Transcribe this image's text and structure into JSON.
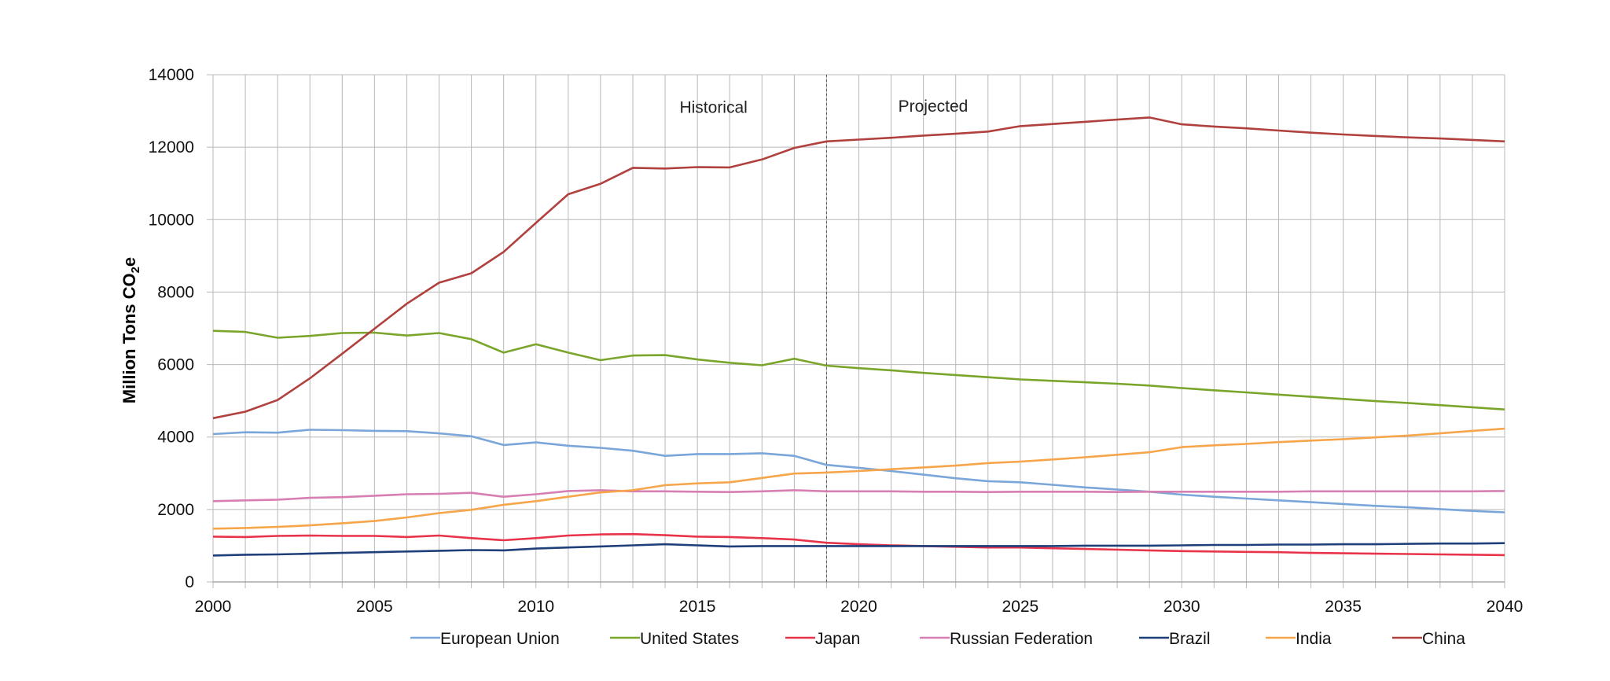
{
  "chart_data": {
    "type": "line",
    "ylabel": "Million Tons CO2e",
    "ylabel_main": "Million Tons CO",
    "ylabel_sub": "2",
    "ylabel_tail": "e",
    "xlim": [
      2000,
      2040
    ],
    "ylim": [
      0,
      14000
    ],
    "xticks": [
      2000,
      2005,
      2010,
      2015,
      2020,
      2025,
      2030,
      2035,
      2040
    ],
    "yticks": [
      0,
      2000,
      4000,
      6000,
      8000,
      10000,
      12000,
      14000
    ],
    "grid": true,
    "legend_position": "bottom",
    "divider_x": 2019,
    "annotations": [
      {
        "text": "Historical",
        "x": 2015.5,
        "y": 13100
      },
      {
        "text": "Projected",
        "x": 2022.3,
        "y": 13130
      }
    ],
    "x": [
      2000,
      2001,
      2002,
      2003,
      2004,
      2005,
      2006,
      2007,
      2008,
      2009,
      2010,
      2011,
      2012,
      2013,
      2014,
      2015,
      2016,
      2017,
      2018,
      2019,
      2020,
      2021,
      2022,
      2023,
      2024,
      2025,
      2026,
      2027,
      2028,
      2029,
      2030,
      2031,
      2032,
      2033,
      2034,
      2035,
      2036,
      2037,
      2038,
      2039,
      2040
    ],
    "series": [
      {
        "name": "European Union",
        "color": "#7ba6d9",
        "values": [
          4080,
          4130,
          4120,
          4200,
          4190,
          4170,
          4160,
          4100,
          4020,
          3780,
          3850,
          3760,
          3700,
          3620,
          3480,
          3530,
          3530,
          3550,
          3480,
          3230,
          3150,
          3060,
          2960,
          2860,
          2780,
          2750,
          2680,
          2610,
          2550,
          2490,
          2410,
          2350,
          2300,
          2250,
          2200,
          2150,
          2100,
          2060,
          2010,
          1960,
          1920
        ]
      },
      {
        "name": "United States",
        "color": "#7aa52b",
        "values": [
          6930,
          6900,
          6740,
          6790,
          6870,
          6880,
          6800,
          6870,
          6700,
          6330,
          6560,
          6330,
          6120,
          6250,
          6260,
          6140,
          6050,
          5980,
          6160,
          5970,
          5900,
          5840,
          5770,
          5710,
          5650,
          5590,
          5550,
          5510,
          5470,
          5420,
          5350,
          5290,
          5230,
          5170,
          5110,
          5050,
          4990,
          4940,
          4880,
          4820,
          4760
        ]
      },
      {
        "name": "Japan",
        "color": "#e8344a",
        "values": [
          1250,
          1240,
          1270,
          1280,
          1270,
          1270,
          1240,
          1280,
          1210,
          1150,
          1210,
          1280,
          1310,
          1320,
          1290,
          1250,
          1240,
          1210,
          1170,
          1080,
          1040,
          1010,
          990,
          970,
          950,
          950,
          930,
          910,
          890,
          870,
          850,
          840,
          830,
          820,
          800,
          790,
          780,
          770,
          760,
          750,
          740
        ]
      },
      {
        "name": "Russian Federation",
        "color": "#d77fb3",
        "values": [
          2230,
          2250,
          2270,
          2320,
          2340,
          2380,
          2420,
          2430,
          2460,
          2350,
          2420,
          2510,
          2530,
          2500,
          2500,
          2490,
          2480,
          2500,
          2530,
          2500,
          2500,
          2500,
          2490,
          2490,
          2480,
          2490,
          2490,
          2490,
          2480,
          2490,
          2490,
          2490,
          2490,
          2490,
          2500,
          2500,
          2500,
          2500,
          2500,
          2500,
          2510
        ]
      },
      {
        "name": "Brazil",
        "color": "#1f3f7a",
        "values": [
          730,
          750,
          760,
          780,
          800,
          820,
          840,
          860,
          880,
          870,
          920,
          950,
          980,
          1010,
          1040,
          1010,
          980,
          990,
          990,
          990,
          990,
          990,
          990,
          990,
          990,
          990,
          990,
          1000,
          1000,
          1000,
          1010,
          1020,
          1020,
          1030,
          1030,
          1040,
          1040,
          1050,
          1060,
          1060,
          1070
        ]
      },
      {
        "name": "India",
        "color": "#f7a54a",
        "values": [
          1470,
          1490,
          1520,
          1560,
          1620,
          1680,
          1780,
          1900,
          1990,
          2130,
          2230,
          2350,
          2470,
          2530,
          2670,
          2720,
          2750,
          2870,
          2990,
          3020,
          3060,
          3110,
          3160,
          3210,
          3280,
          3320,
          3380,
          3440,
          3510,
          3580,
          3720,
          3770,
          3810,
          3860,
          3900,
          3940,
          3990,
          4040,
          4100,
          4170,
          4230
        ]
      },
      {
        "name": "China",
        "color": "#b0413e",
        "values": [
          4520,
          4700,
          5020,
          5620,
          6300,
          6990,
          7680,
          8260,
          8520,
          9110,
          9910,
          10700,
          10990,
          11430,
          11410,
          11450,
          11440,
          11660,
          11980,
          12160,
          12210,
          12260,
          12320,
          12370,
          12430,
          12580,
          12640,
          12700,
          12760,
          12820,
          12630,
          12570,
          12520,
          12460,
          12400,
          12350,
          12310,
          12270,
          12240,
          12200,
          12160
        ]
      }
    ]
  }
}
